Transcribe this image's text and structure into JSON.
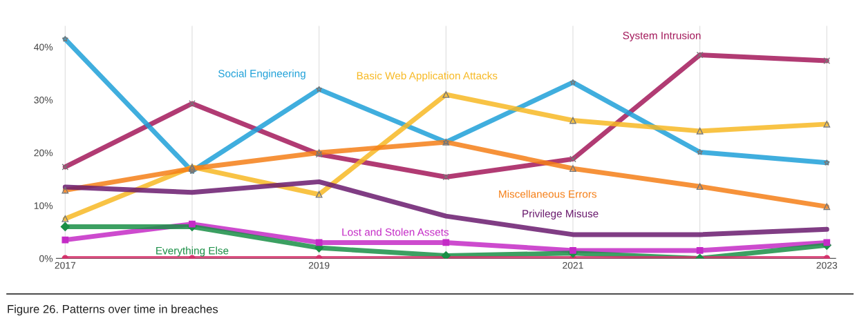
{
  "chart_data": {
    "type": "line",
    "title": "Figure 26. Patterns over time in breaches",
    "x": [
      2017,
      2018,
      2019,
      2020,
      2021,
      2022,
      2023
    ],
    "xlim": [
      2016.93,
      2023.07
    ],
    "xticks": [
      2017,
      {
        "value": 2018,
        "label": null
      },
      2019,
      {
        "value": 2020,
        "label": null
      },
      2021,
      {
        "value": 2022,
        "label": null
      },
      2023
    ],
    "ylim": [
      0,
      44
    ],
    "yticks": [
      {
        "value": 0,
        "label": "0%"
      },
      {
        "value": 10,
        "label": "10%"
      },
      {
        "value": 20,
        "label": "20%"
      },
      {
        "value": 30,
        "label": "30%"
      },
      {
        "value": 40,
        "label": "40%"
      }
    ],
    "grid": "x",
    "legend": false,
    "series": [
      {
        "name": "System Intrusion",
        "color": "#a3195b",
        "marker": "cross",
        "values": [
          17.3,
          29.3,
          19.7,
          15.4,
          18.8,
          38.5,
          37.4
        ]
      },
      {
        "name": "Social Engineering",
        "color": "#1ea0d8",
        "marker": "star",
        "values": [
          41.5,
          16.5,
          32,
          22,
          33.3,
          20.1,
          18.1
        ]
      },
      {
        "name": "Basic Web Application Attacks",
        "color": "#f7b924",
        "marker": "triangle",
        "values": [
          7.5,
          17.3,
          12.1,
          31,
          26.1,
          24.1,
          25.4
        ]
      },
      {
        "name": "Miscellaneous Errors",
        "color": "#f57f17",
        "marker": "triangle",
        "values": [
          12.9,
          17,
          20,
          22,
          17,
          13.6,
          9.8
        ]
      },
      {
        "name": "Privilege Misuse",
        "color": "#6a1b6e",
        "marker": "none",
        "values": [
          13.5,
          12.5,
          14.5,
          8,
          4.5,
          4.5,
          5.5
        ]
      },
      {
        "name": "Lost and Stolen Assets",
        "color": "#c42bc6",
        "marker": "square",
        "values": [
          3.5,
          6.5,
          3,
          3,
          1.5,
          1.5,
          3
        ]
      },
      {
        "name": "Everything Else",
        "color": "#1a8f46",
        "marker": "diamond",
        "values": [
          6,
          6,
          2,
          0.5,
          1,
          0,
          2.5
        ]
      },
      {
        "color": "#d6336c",
        "marker": "circle",
        "values": [
          0,
          0,
          0,
          0,
          0,
          0,
          0
        ]
      }
    ]
  }
}
